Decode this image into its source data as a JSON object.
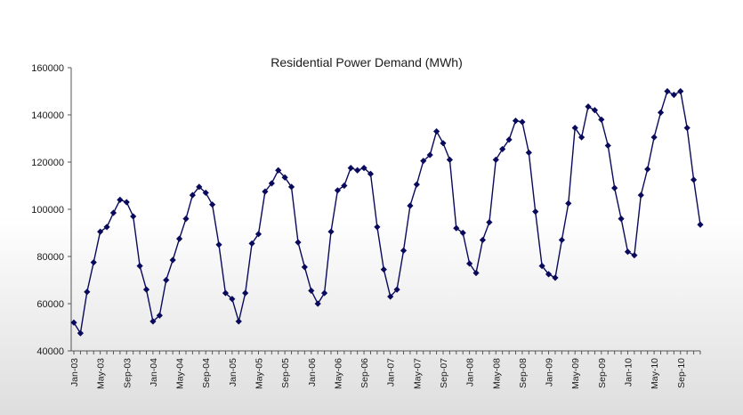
{
  "chart_data": {
    "type": "line",
    "title": "Residential Power Demand (MWh)",
    "xlabel": "",
    "ylabel": "",
    "ylim": [
      40000,
      160000
    ],
    "y_ticks": [
      40000,
      60000,
      80000,
      100000,
      120000,
      140000,
      160000
    ],
    "y_tick_labels": [
      "40000",
      "60000",
      "80000",
      "100000",
      "120000",
      "140000",
      "160000"
    ],
    "grid": false,
    "legend": "none",
    "x_start": "Jan-03",
    "x_tick_labels": [
      "Jan-03",
      "May-03",
      "Sep-03",
      "Jan-04",
      "May-04",
      "Sep-04",
      "Jan-05",
      "May-05",
      "Sep-05",
      "Jan-06",
      "May-06",
      "Sep-06",
      "Jan-07",
      "May-07",
      "Sep-07",
      "Jan-08",
      "May-08",
      "Sep-08",
      "Jan-09",
      "May-09",
      "Sep-09",
      "Jan-10",
      "May-10",
      "Sep-10"
    ],
    "x_tick_every_months": 4,
    "series_color": "#0a0a5c",
    "values": [
      52000,
      47500,
      65000,
      77500,
      90500,
      92500,
      98500,
      104000,
      103000,
      97000,
      76000,
      66000,
      52500,
      55000,
      70000,
      78500,
      87500,
      96000,
      106000,
      109500,
      107000,
      102000,
      85000,
      64500,
      62000,
      52500,
      64500,
      85500,
      89500,
      107500,
      111000,
      116500,
      113500,
      109500,
      86000,
      75500,
      65500,
      60000,
      64500,
      90500,
      108000,
      110000,
      117500,
      116500,
      117500,
      115000,
      92500,
      74500,
      63000,
      66000,
      82500,
      101500,
      110500,
      120500,
      123000,
      133000,
      128000,
      121000,
      92000,
      90000,
      77000,
      73000,
      87000,
      94500,
      121000,
      125500,
      129500,
      137500,
      137000,
      124000,
      99000,
      76000,
      72500,
      71000,
      87000,
      102500,
      134500,
      130500,
      143500,
      142000,
      138000,
      127000,
      109000,
      96000,
      82000,
      80500,
      106000,
      117000,
      130500,
      141000,
      150000,
      148500,
      150000,
      134500,
      112500,
      93500
    ]
  }
}
